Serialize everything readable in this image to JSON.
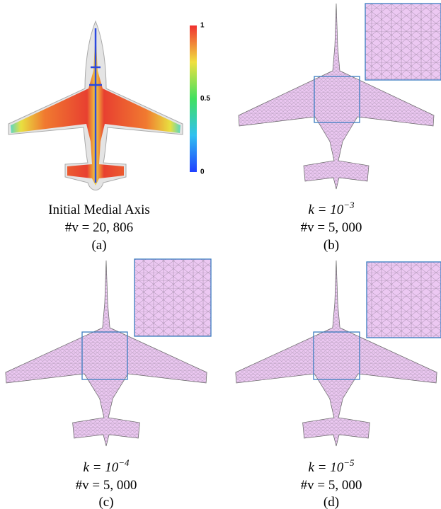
{
  "colorbar": {
    "ticks": [
      {
        "value": 1,
        "label": "1"
      },
      {
        "value": 0.5,
        "label": "0.5"
      },
      {
        "value": 0,
        "label": "0"
      }
    ]
  },
  "panels": [
    {
      "title": "Initial Medial Axis",
      "count": "#v = 20, 806",
      "label": "(a)"
    },
    {
      "k": {
        "base": "k = 10",
        "exp": "−3"
      },
      "count": "#v = 5, 000",
      "label": "(b)"
    },
    {
      "k": {
        "base": "k = 10",
        "exp": "−4"
      },
      "count": "#v = 5, 000",
      "label": "(c)"
    },
    {
      "k": {
        "base": "k = 10",
        "exp": "−5"
      },
      "count": "#v = 5, 000",
      "label": "(d)"
    }
  ]
}
